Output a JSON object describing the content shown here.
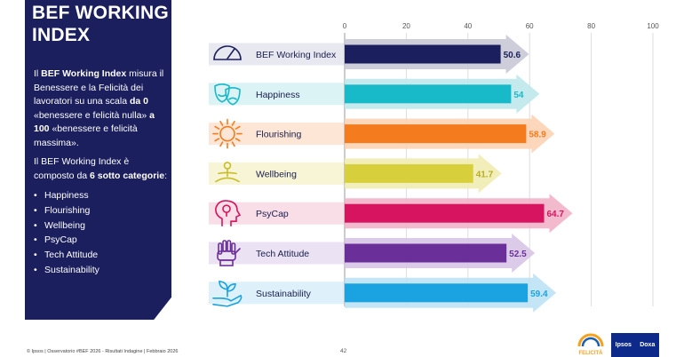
{
  "side": {
    "title_line1": "BEF WORKING",
    "title_line2": "INDEX",
    "p1_a": "Il ",
    "p1_b": "BEF Working Index",
    "p1_c": " misura il Benessere e la Felicità dei lavoratori su una scala ",
    "p1_d": "da 0",
    "p1_e": " «benessere e felicità nulla» ",
    "p1_f": "a 100",
    "p1_g": " «benessere e felicità massima».",
    "p2_a": "Il BEF Working Index è composto da ",
    "p2_b": "6 sotto categorie",
    "p2_c": ":",
    "list": [
      "Happiness",
      "Flourishing",
      "Wellbeing",
      "PsyCap",
      "Tech Attitude",
      "Sustainability"
    ]
  },
  "footer": {
    "source": "© Ipsos | Osservatorio #BEF 2026 - Risultati Indagine | Febbraio 2026",
    "page": "42"
  },
  "logos": {
    "felicita": "FELICITÀ",
    "ipsos": "Ipsos",
    "doxa": "Doxa"
  },
  "chart_data": {
    "type": "bar",
    "orientation": "horizontal",
    "categories": [
      "BEF Working Index",
      "Happiness",
      "Flourishing",
      "Wellbeing",
      "PsyCap",
      "Tech Attitude",
      "Sustainability"
    ],
    "values": [
      50.6,
      54,
      58.9,
      41.7,
      64.7,
      52.5,
      59.4
    ],
    "value_labels": [
      "50.6",
      "54",
      "58.9",
      "41.7",
      "64.7",
      "52.5",
      "59.4"
    ],
    "xlim": [
      0,
      100
    ],
    "ticks": [
      0,
      20,
      40,
      60,
      80,
      100
    ],
    "tick_labels": [
      "0",
      "20",
      "40",
      "60",
      "80",
      "100"
    ],
    "grid": true,
    "bar_colors": [
      "#1b1f5e",
      "#18b9c9",
      "#f57c1e",
      "#d8cf3c",
      "#d6145f",
      "#6b2f9a",
      "#1aa3e0"
    ],
    "arrow_colors": [
      "#c9c9d6",
      "#bfe8ec",
      "#fcd3b4",
      "#efecb2",
      "#f2b3c9",
      "#d7c4e6",
      "#bde2f4"
    ],
    "row_bg_colors": [
      "#e8e8f0",
      "#dcf3f5",
      "#fde6d5",
      "#f7f5d6",
      "#f9dde7",
      "#ebe2f3",
      "#def0fa"
    ],
    "icons": [
      "gauge-icon",
      "theater-masks-icon",
      "sun-icon",
      "meditation-icon",
      "head-lightbulb-icon",
      "robot-hand-icon",
      "plant-hand-icon"
    ]
  }
}
